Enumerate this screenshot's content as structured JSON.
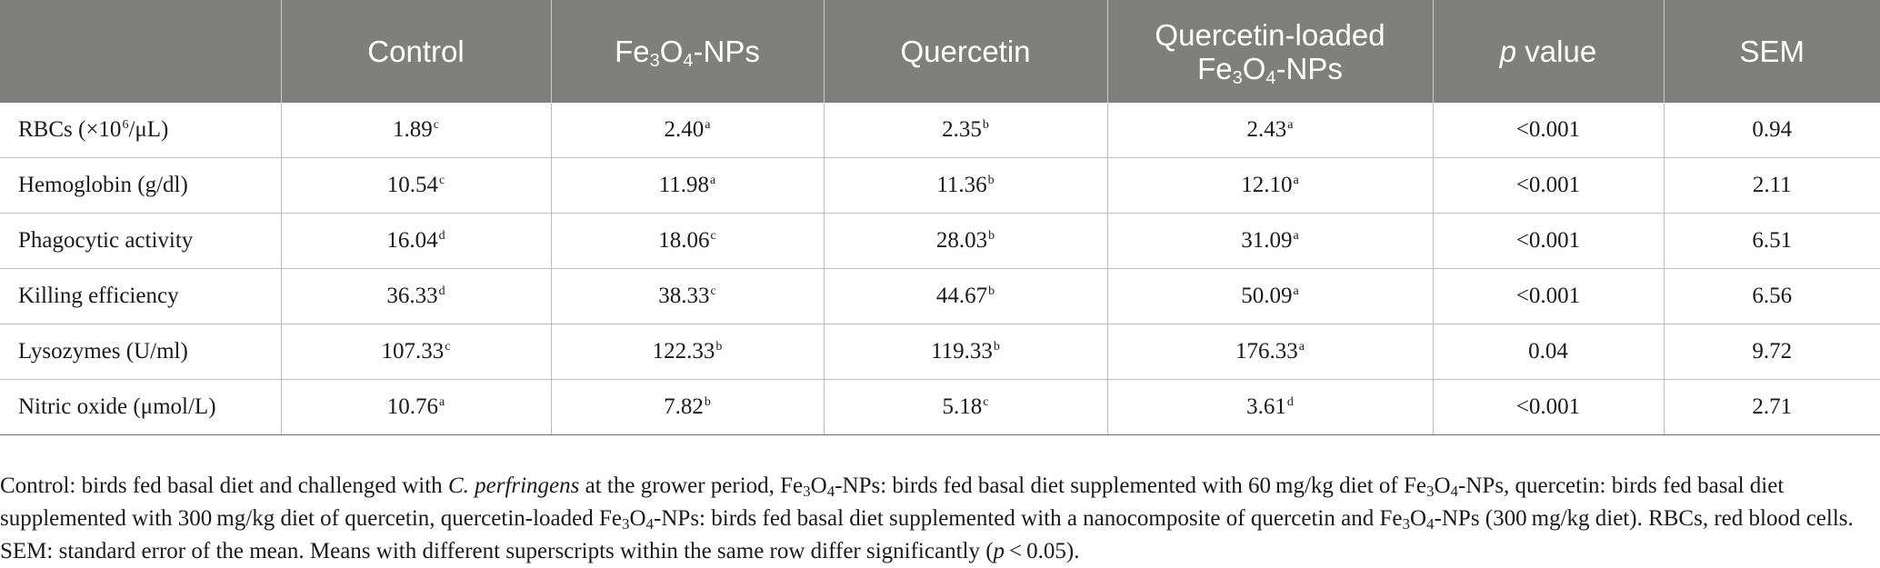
{
  "table": {
    "headers": [
      {
        "id": "blank",
        "label": ""
      },
      {
        "id": "control",
        "label": "Control"
      },
      {
        "id": "fe3o4",
        "pre": "Fe",
        "sub1": "3",
        "mid": "O",
        "sub2": "4",
        "post": "-NPs"
      },
      {
        "id": "quercetin",
        "label": "Quercetin"
      },
      {
        "id": "qfe3o4",
        "line1": "Quercetin-loaded",
        "pre": "Fe",
        "sub1": "3",
        "mid": "O",
        "sub2": "4",
        "post": "-NPs"
      },
      {
        "id": "pvalue",
        "italic": "p",
        "rest": " value"
      },
      {
        "id": "sem",
        "label": "SEM"
      }
    ],
    "rows": [
      {
        "label": "RBCs (×10",
        "label_sup": "6",
        "label_post": "/μL)",
        "cells": [
          {
            "v": "1.89",
            "s": "c"
          },
          {
            "v": "2.40",
            "s": "a"
          },
          {
            "v": "2.35",
            "s": "b"
          },
          {
            "v": "2.43",
            "s": "a"
          }
        ],
        "p": "<0.001",
        "sem": "0.94"
      },
      {
        "label": "Hemoglobin (g/dl)",
        "cells": [
          {
            "v": "10.54",
            "s": "c"
          },
          {
            "v": "11.98",
            "s": "a"
          },
          {
            "v": "11.36",
            "s": "b"
          },
          {
            "v": "12.10",
            "s": "a"
          }
        ],
        "p": "<0.001",
        "sem": "2.11"
      },
      {
        "label": "Phagocytic activity",
        "cells": [
          {
            "v": "16.04",
            "s": "d"
          },
          {
            "v": "18.06",
            "s": "c"
          },
          {
            "v": "28.03",
            "s": "b"
          },
          {
            "v": "31.09",
            "s": "a"
          }
        ],
        "p": "<0.001",
        "sem": "6.51"
      },
      {
        "label": "Killing efficiency",
        "cells": [
          {
            "v": "36.33",
            "s": "d"
          },
          {
            "v": "38.33",
            "s": "c"
          },
          {
            "v": "44.67",
            "s": "b"
          },
          {
            "v": "50.09",
            "s": "a"
          }
        ],
        "p": "<0.001",
        "sem": "6.56"
      },
      {
        "label": "Lysozymes (U/ml)",
        "cells": [
          {
            "v": "107.33",
            "s": "c"
          },
          {
            "v": "122.33",
            "s": "b"
          },
          {
            "v": "119.33",
            "s": "b"
          },
          {
            "v": "176.33",
            "s": "a"
          }
        ],
        "p": "0.04",
        "sem": "9.72"
      },
      {
        "label": "Nitric oxide (μmol/L)",
        "cells": [
          {
            "v": "10.76",
            "s": "a"
          },
          {
            "v": "7.82",
            "s": "b"
          },
          {
            "v": "5.18",
            "s": "c"
          },
          {
            "v": "3.61",
            "s": "d"
          }
        ],
        "p": "<0.001",
        "sem": "2.71"
      }
    ]
  },
  "footnote": {
    "t1": "Control: birds fed basal diet and challenged with ",
    "t1_italic": "C. perfringens",
    "t2": " at the grower period, Fe",
    "s1": "3",
    "t3": "O",
    "s2": "4",
    "t4": "-NPs: birds fed basal diet supplemented with 60 mg/kg diet of Fe",
    "s3": "3",
    "t5": "O",
    "s4": "4",
    "t6": "-NPs, quercetin: birds fed basal diet supplemented with 300 mg/kg diet of quercetin, quercetin-loaded Fe",
    "s5": "3",
    "t7": "O",
    "s6": "4",
    "t8": "-NPs: birds fed basal diet supplemented with a nanocomposite of quercetin and Fe",
    "s7": "3",
    "t9": "O",
    "s8": "4",
    "t10": "-NPs (300 mg/kg diet). RBCs, red blood cells. SEM: standard error of the mean. Means with different superscripts within the same row differ significantly (",
    "t10_italic": "p",
    "t11": " < 0.05)."
  }
}
